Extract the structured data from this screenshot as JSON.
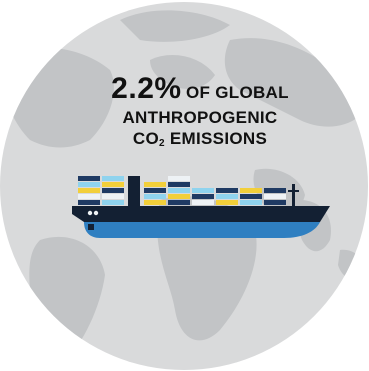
{
  "headline": {
    "value": "2.2%",
    "line1_rest": "OF GLOBAL",
    "line2": "ANTHROPOGENIC",
    "line3_prefix": "CO",
    "line3_sub": "2",
    "line3_suffix": " EMISSIONS"
  },
  "colors": {
    "globe_ocean": "#d9dadb",
    "globe_land": "#c2c4c6",
    "hull_dark": "#132033",
    "hull_blue": "#2f7fc1",
    "container_yellow": "#f2cf3a",
    "container_cyan": "#8fd3ee",
    "container_navy": "#1f3a63",
    "container_white": "#eef2f5"
  },
  "icons": [
    "globe-icon",
    "container-ship-icon"
  ]
}
